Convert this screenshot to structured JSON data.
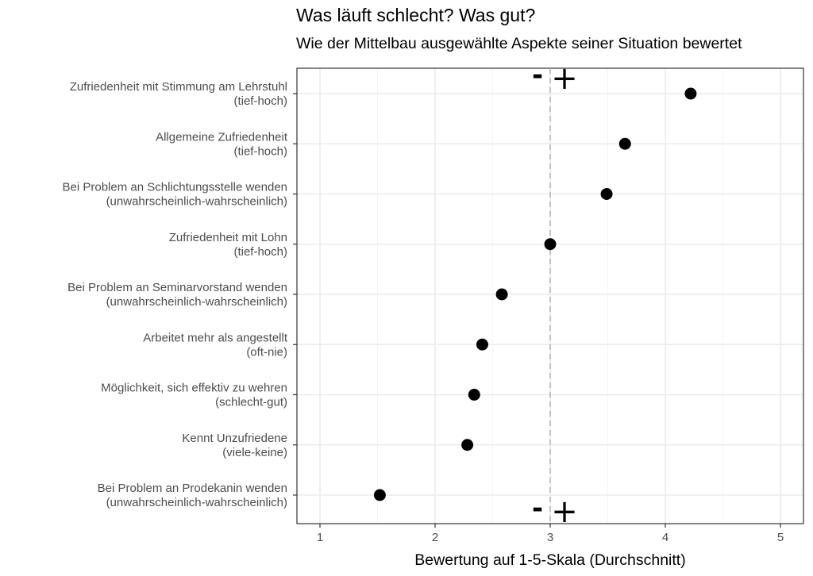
{
  "chart_data": {
    "type": "scatter",
    "title": "Was läuft schlecht? Was gut?",
    "subtitle": "Wie der Mittelbau ausgewählte Aspekte seiner Situation bewertet",
    "xlabel": "Bewertung auf 1-5-Skala (Durchschnitt)",
    "ylabel": "",
    "xlim": [
      0.8,
      5.2
    ],
    "x_ticks": [
      1,
      2,
      3,
      4,
      5
    ],
    "reference_line": 3,
    "grid": true,
    "markers": {
      "minus": "-",
      "plus": "+"
    },
    "categories": [
      {
        "label": "Zufriedenheit mit Stimmung am Lehrstuhl",
        "scale": "(tief-hoch)",
        "value": 4.22
      },
      {
        "label": "Allgemeine Zufriedenheit",
        "scale": "(tief-hoch)",
        "value": 3.65
      },
      {
        "label": "Bei Problem an Schlichtungsstelle wenden",
        "scale": "(unwahrscheinlich-wahrscheinlich)",
        "value": 3.49
      },
      {
        "label": "Zufriedenheit mit Lohn",
        "scale": "(tief-hoch)",
        "value": 3.0
      },
      {
        "label": "Bei Problem an Seminarvorstand wenden",
        "scale": "(unwahrscheinlich-wahrscheinlich)",
        "value": 2.58
      },
      {
        "label": "Arbeitet mehr als angestellt",
        "scale": "(oft-nie)",
        "value": 2.41
      },
      {
        "label": "Möglichkeit, sich effektiv zu wehren",
        "scale": "(schlecht-gut)",
        "value": 2.34
      },
      {
        "label": "Kennt Unzufriedene",
        "scale": "(viele-keine)",
        "value": 2.28
      },
      {
        "label": "Bei Problem an Prodekanin wenden",
        "scale": "(unwahrscheinlich-wahrscheinlich)",
        "value": 1.52
      }
    ],
    "colors": {
      "point": "#000000",
      "grid_major": "#ebebeb",
      "grid_minor": "#f5f5f5",
      "panel_border": "#333333",
      "reference_line": "#b3b3b3",
      "text": "#4d4d4d"
    }
  }
}
